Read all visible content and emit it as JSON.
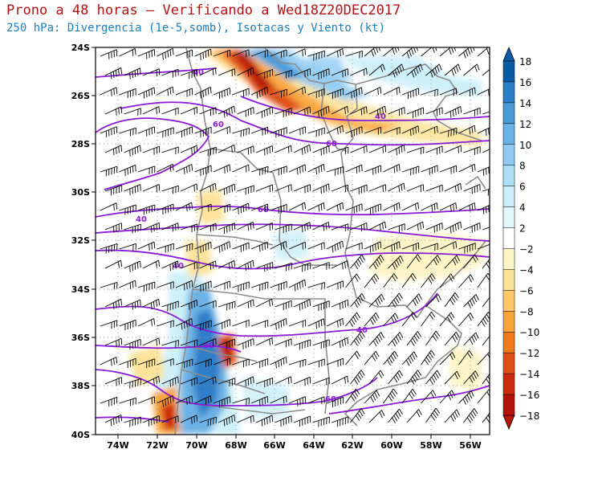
{
  "header": {
    "title": "Prono a 48 horas – Verificando a Wed18Z20DEC2017",
    "subtitle": "250 hPa: Divergencia (1e-5,somb), Isotacas y Viento (kt)"
  },
  "map": {
    "lat_labels": [
      "24S",
      "26S",
      "28S",
      "30S",
      "32S",
      "34S",
      "36S",
      "38S",
      "40S"
    ],
    "lon_labels": [
      "74W",
      "72W",
      "70W",
      "68W",
      "66W",
      "64W",
      "62W",
      "60W",
      "58W",
      "56W"
    ],
    "isotach_labels": [
      "40",
      "40",
      "60",
      "60",
      "60",
      "40",
      "40",
      "40",
      "60",
      "60"
    ]
  },
  "colorbar": {
    "tick_labels": [
      "18",
      "16",
      "14",
      "12",
      "10",
      "8",
      "6",
      "4",
      "2",
      "−2",
      "−4",
      "−6",
      "−8",
      "−10",
      "−12",
      "−14",
      "−16",
      "−18"
    ],
    "colors": [
      "#0b5aa6",
      "#2d7ec8",
      "#4a9ad8",
      "#6cb2e6",
      "#8ecaf2",
      "#ade0f7",
      "#c9eef8",
      "#e2f8fa",
      "#ffffff",
      "#fdf5c8",
      "#fde39a",
      "#fcc86a",
      "#f9a43a",
      "#ef7a1e",
      "#e04f16",
      "#cc2a10",
      "#b51409"
    ]
  },
  "colors": {
    "isotach": "#8a1ad6",
    "border": "#808080",
    "divergence": "#5aa9e6",
    "convergence": "#f5a623"
  }
}
